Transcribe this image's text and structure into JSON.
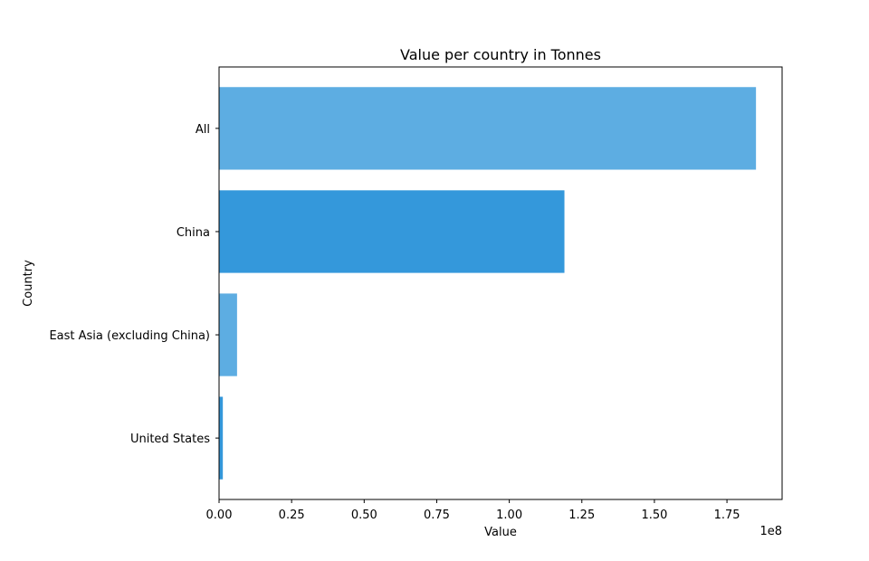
{
  "chart_data": {
    "type": "bar",
    "orientation": "horizontal",
    "title": "Value per country in Tonnes",
    "xlabel": "Value",
    "ylabel": "Country",
    "categories": [
      "All",
      "China",
      "East Asia (excluding China)",
      "United States"
    ],
    "values": [
      185000000,
      119000000,
      6200000,
      1300000
    ],
    "colors": [
      "#5dade2",
      "#3498db",
      "#5dade2",
      "#3498db"
    ],
    "xlim": [
      0,
      194000000
    ],
    "x_ticks": [
      0,
      25000000,
      50000000,
      75000000,
      100000000,
      125000000,
      150000000,
      175000000
    ],
    "x_tick_labels": [
      "0.00",
      "0.25",
      "0.50",
      "0.75",
      "1.00",
      "1.25",
      "1.50",
      "1.75"
    ],
    "x_offset_label": "1e8",
    "grid": false,
    "legend": "none"
  }
}
